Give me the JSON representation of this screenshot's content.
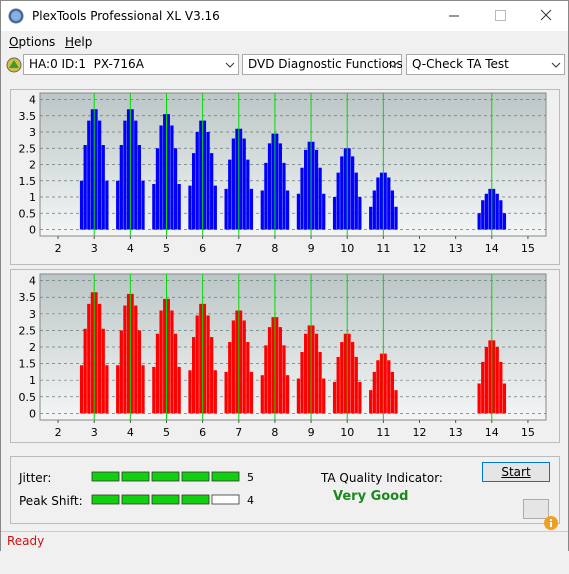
{
  "window": {
    "title": "PlexTools Professional XL V3.16"
  },
  "menu": [
    "Options",
    "Help"
  ],
  "toolbar": {
    "drive": "HA:0 ID:1  PX-716A",
    "function": "DVD Diagnostic Functions",
    "test": "Q-Check TA Test"
  },
  "chart_data": [
    {
      "type": "bar",
      "color": "#0000ff",
      "marker_color": "#00dd00",
      "xlim": [
        1.5,
        15.5
      ],
      "ylim": [
        -0.2,
        4.2
      ],
      "xticks": [
        2,
        3,
        4,
        5,
        6,
        7,
        8,
        9,
        10,
        11,
        12,
        13,
        14,
        15
      ],
      "yticks": [
        0,
        0.5,
        1,
        1.5,
        2,
        2.5,
        3,
        3.5,
        4
      ],
      "grid": true,
      "markers": [
        3,
        4,
        5,
        6,
        7,
        8,
        9,
        10,
        11,
        14
      ],
      "x": [
        2.65,
        2.75,
        2.85,
        2.95,
        3.05,
        3.15,
        3.25,
        3.35,
        3.65,
        3.75,
        3.85,
        3.95,
        4.05,
        4.15,
        4.25,
        4.35,
        4.65,
        4.75,
        4.85,
        4.95,
        5.05,
        5.15,
        5.25,
        5.35,
        5.65,
        5.75,
        5.85,
        5.95,
        6.05,
        6.15,
        6.25,
        6.35,
        6.65,
        6.75,
        6.85,
        6.95,
        7.05,
        7.15,
        7.25,
        7.35,
        7.65,
        7.75,
        7.85,
        7.95,
        8.05,
        8.15,
        8.25,
        8.35,
        8.65,
        8.75,
        8.85,
        8.95,
        9.05,
        9.15,
        9.25,
        9.35,
        9.65,
        9.75,
        9.85,
        9.95,
        10.05,
        10.15,
        10.25,
        10.35,
        10.65,
        10.75,
        10.85,
        10.95,
        11.05,
        11.15,
        11.25,
        11.35,
        13.65,
        13.75,
        13.85,
        13.95,
        14.05,
        14.15,
        14.25,
        14.35
      ],
      "values": [
        1.5,
        2.6,
        3.35,
        3.7,
        3.7,
        3.35,
        2.6,
        1.5,
        1.5,
        2.6,
        3.35,
        3.7,
        3.7,
        3.35,
        2.6,
        1.5,
        1.4,
        2.5,
        3.2,
        3.55,
        3.55,
        3.2,
        2.5,
        1.4,
        1.35,
        2.35,
        3,
        3.35,
        3.35,
        3,
        2.35,
        1.35,
        1.25,
        2.15,
        2.8,
        3.1,
        3.1,
        2.8,
        2.15,
        1.25,
        1.2,
        2.05,
        2.65,
        2.95,
        2.95,
        2.65,
        2.05,
        1.2,
        1.1,
        1.9,
        2.45,
        2.7,
        2.7,
        2.45,
        1.9,
        1.1,
        1,
        1.75,
        2.25,
        2.5,
        2.5,
        2.25,
        1.75,
        1,
        0.7,
        1.2,
        1.6,
        1.75,
        1.75,
        1.6,
        1.2,
        0.7,
        0.5,
        0.9,
        1.1,
        1.25,
        1.25,
        1.1,
        0.9,
        0.5
      ]
    },
    {
      "type": "bar",
      "color": "#ff0000",
      "marker_color": "#00dd00",
      "xlim": [
        1.5,
        15.5
      ],
      "ylim": [
        -0.2,
        4.2
      ],
      "xticks": [
        2,
        3,
        4,
        5,
        6,
        7,
        8,
        9,
        10,
        11,
        12,
        13,
        14,
        15
      ],
      "yticks": [
        0,
        0.5,
        1,
        1.5,
        2,
        2.5,
        3,
        3.5,
        4
      ],
      "grid": true,
      "markers": [
        3,
        4,
        5,
        6,
        7,
        8,
        9,
        10,
        11,
        14
      ],
      "x": [
        2.65,
        2.75,
        2.85,
        2.95,
        3.05,
        3.15,
        3.25,
        3.35,
        3.65,
        3.75,
        3.85,
        3.95,
        4.05,
        4.15,
        4.25,
        4.35,
        4.65,
        4.75,
        4.85,
        4.95,
        5.05,
        5.15,
        5.25,
        5.35,
        5.65,
        5.75,
        5.85,
        5.95,
        6.05,
        6.15,
        6.25,
        6.35,
        6.65,
        6.75,
        6.85,
        6.95,
        7.05,
        7.15,
        7.25,
        7.35,
        7.65,
        7.75,
        7.85,
        7.95,
        8.05,
        8.15,
        8.25,
        8.35,
        8.65,
        8.75,
        8.85,
        8.95,
        9.05,
        9.15,
        9.25,
        9.35,
        9.65,
        9.75,
        9.85,
        9.95,
        10.05,
        10.15,
        10.25,
        10.35,
        10.65,
        10.75,
        10.85,
        10.95,
        11.05,
        11.15,
        11.25,
        11.35,
        13.65,
        13.75,
        13.85,
        13.95,
        14.05,
        14.15,
        14.25,
        14.35
      ],
      "values": [
        1.45,
        2.55,
        3.3,
        3.65,
        3.65,
        3.3,
        2.55,
        1.45,
        1.45,
        2.5,
        3.25,
        3.6,
        3.6,
        3.25,
        2.5,
        1.45,
        1.4,
        2.4,
        3.1,
        3.45,
        3.45,
        3.1,
        2.4,
        1.4,
        1.3,
        2.3,
        2.95,
        3.3,
        3.3,
        2.95,
        2.3,
        1.3,
        1.25,
        2.15,
        2.8,
        3.1,
        3.1,
        2.8,
        2.15,
        1.25,
        1.15,
        2.05,
        2.6,
        2.9,
        2.9,
        2.6,
        2.05,
        1.15,
        1.05,
        1.85,
        2.4,
        2.65,
        2.65,
        2.4,
        1.85,
        1.05,
        0.95,
        1.7,
        2.15,
        2.4,
        2.4,
        2.15,
        1.7,
        0.95,
        0.7,
        1.25,
        1.6,
        1.8,
        1.8,
        1.6,
        1.25,
        0.7,
        0.9,
        1.55,
        2,
        2.2,
        2.2,
        2,
        1.55,
        0.9
      ]
    }
  ],
  "indicators": [
    {
      "label": "Jitter:",
      "value": 5
    },
    {
      "label": "Peak Shift:",
      "value": 4
    }
  ],
  "ta_quality": {
    "label": "TA Quality Indicator:",
    "result": "Very Good"
  },
  "buttons": {
    "start": "Start"
  },
  "status": "Ready"
}
